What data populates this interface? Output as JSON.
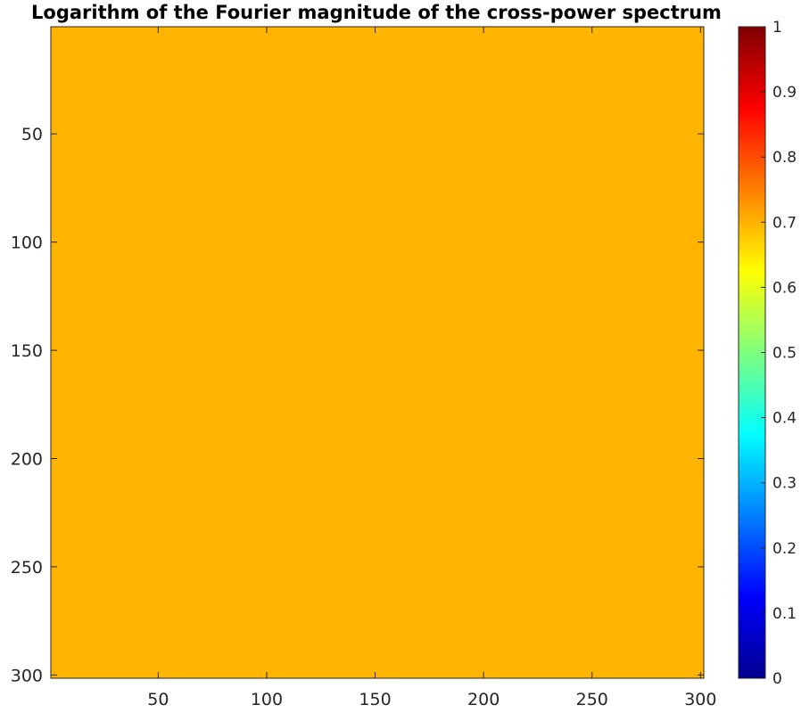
{
  "chart_data": {
    "type": "heatmap",
    "title": "Logarithm of the Fourier magnitude of the cross-power spectrum",
    "xlabel": "",
    "ylabel": "",
    "xlim": [
      0.5,
      301.5
    ],
    "ylim": [
      0.5,
      301.5
    ],
    "y_direction": "reverse",
    "x_ticks": [
      50,
      100,
      150,
      200,
      250,
      300
    ],
    "y_ticks": [
      50,
      100,
      150,
      200,
      250,
      300
    ],
    "x_tick_labels": [
      "50",
      "100",
      "150",
      "200",
      "250",
      "300"
    ],
    "y_tick_labels": [
      "50",
      "100",
      "150",
      "200",
      "250",
      "300"
    ],
    "matrix_size": [
      301,
      301
    ],
    "uniform_value": 0.7,
    "fill_color": "#ffb400",
    "colormap": "jet",
    "colorbar": {
      "placement": "right",
      "range": [
        0,
        1
      ],
      "ticks": [
        0,
        0.1,
        0.2,
        0.3,
        0.4,
        0.5,
        0.6,
        0.7,
        0.8,
        0.9,
        1
      ],
      "tick_labels": [
        "0",
        "0.1",
        "0.2",
        "0.3",
        "0.4",
        "0.5",
        "0.6",
        "0.7",
        "0.8",
        "0.9",
        "1"
      ]
    },
    "grid": false
  },
  "colors": {
    "axis": "#262626",
    "background": "#ffffff"
  }
}
